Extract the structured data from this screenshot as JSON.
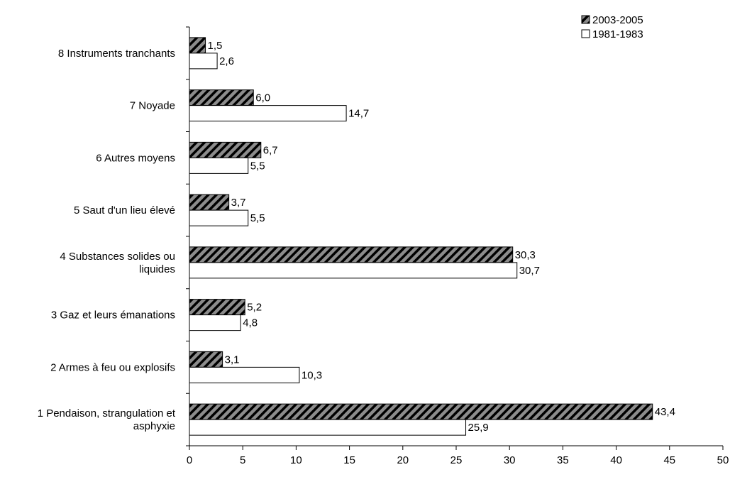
{
  "chart_data": {
    "type": "bar",
    "orientation": "horizontal",
    "categories": [
      [
        "8 Instruments tranchants"
      ],
      [
        "7 Noyade"
      ],
      [
        "6 Autres moyens"
      ],
      [
        "5 Saut d'un lieu élevé"
      ],
      [
        "4 Substances solides ou",
        "liquides"
      ],
      [
        "3 Gaz et leurs émanations"
      ],
      [
        "2 Armes à feu ou explosifs"
      ],
      [
        "1 Pendaison, strangulation et",
        "asphyxie"
      ]
    ],
    "series": [
      {
        "name": "2003-2005",
        "values": [
          1.5,
          6.0,
          6.7,
          3.7,
          30.3,
          5.2,
          3.1,
          43.4
        ],
        "labels": [
          "1,5",
          "6,0",
          "6,7",
          "3,7",
          "30,3",
          "5,2",
          "3,1",
          "43,4"
        ],
        "fill": "hatched",
        "color": "#808080",
        "stripe_color": "#000000"
      },
      {
        "name": "1981-1983",
        "values": [
          2.6,
          14.7,
          5.5,
          5.5,
          30.7,
          4.8,
          10.3,
          25.9
        ],
        "labels": [
          "2,6",
          "14,7",
          "5,5",
          "5,5",
          "30,7",
          "4,8",
          "10,3",
          "25,9"
        ],
        "fill": "solid",
        "color": "#ffffff"
      }
    ],
    "xlim": [
      0,
      50
    ],
    "xticks": [
      0,
      5,
      10,
      15,
      20,
      25,
      30,
      35,
      40,
      45,
      50
    ],
    "title": "",
    "xlabel": "",
    "ylabel": "",
    "grid": false,
    "legend_position": "top-right"
  }
}
